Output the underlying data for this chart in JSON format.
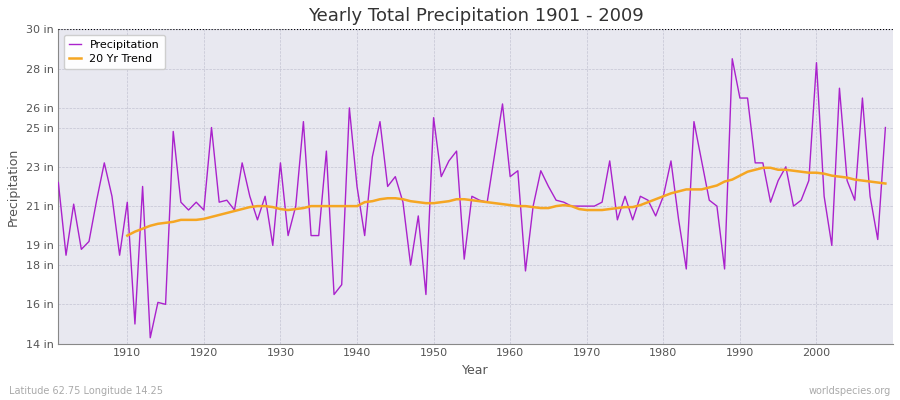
{
  "title": "Yearly Total Precipitation 1901 - 2009",
  "xlabel": "Year",
  "ylabel": "Precipitation",
  "bottom_left_label": "Latitude 62.75 Longitude 14.25",
  "bottom_right_label": "worldspecies.org",
  "ylim": [
    14,
    30
  ],
  "yticks": [
    14,
    16,
    18,
    19,
    21,
    23,
    25,
    26,
    28,
    30
  ],
  "ytick_labels": [
    "14 in",
    "16 in",
    "18 in",
    "19 in",
    "21 in",
    "23 in",
    "25 in",
    "26 in",
    "28 in",
    "30 in"
  ],
  "xlim": [
    1901,
    2010
  ],
  "xticks": [
    1910,
    1920,
    1930,
    1940,
    1950,
    1960,
    1970,
    1980,
    1990,
    2000
  ],
  "fig_bg_color": "#ffffff",
  "plot_bg_color": "#e8e8f0",
  "precip_color": "#aa22cc",
  "trend_color": "#f5a623",
  "precip_linewidth": 1.0,
  "trend_linewidth": 1.8,
  "years": [
    1901,
    1902,
    1903,
    1904,
    1905,
    1906,
    1907,
    1908,
    1909,
    1910,
    1911,
    1912,
    1913,
    1914,
    1915,
    1916,
    1917,
    1918,
    1919,
    1920,
    1921,
    1922,
    1923,
    1924,
    1925,
    1926,
    1927,
    1928,
    1929,
    1930,
    1931,
    1932,
    1933,
    1934,
    1935,
    1936,
    1937,
    1938,
    1939,
    1940,
    1941,
    1942,
    1943,
    1944,
    1945,
    1946,
    1947,
    1948,
    1949,
    1950,
    1951,
    1952,
    1953,
    1954,
    1955,
    1956,
    1957,
    1958,
    1959,
    1960,
    1961,
    1962,
    1963,
    1964,
    1965,
    1966,
    1967,
    1968,
    1969,
    1970,
    1971,
    1972,
    1973,
    1974,
    1975,
    1976,
    1977,
    1978,
    1979,
    1980,
    1981,
    1982,
    1983,
    1984,
    1985,
    1986,
    1987,
    1988,
    1989,
    1990,
    1991,
    1992,
    1993,
    1994,
    1995,
    1996,
    1997,
    1998,
    1999,
    2000,
    2001,
    2002,
    2003,
    2004,
    2005,
    2006,
    2007,
    2008,
    2009
  ],
  "precip": [
    22.2,
    18.5,
    21.1,
    18.8,
    19.2,
    21.3,
    23.2,
    21.5,
    18.5,
    21.2,
    15.0,
    22.0,
    14.3,
    16.1,
    16.0,
    24.8,
    21.2,
    20.8,
    21.2,
    20.8,
    25.0,
    21.2,
    21.3,
    20.8,
    23.2,
    21.5,
    20.3,
    21.5,
    19.0,
    23.2,
    19.5,
    21.0,
    25.3,
    19.5,
    19.5,
    23.8,
    16.5,
    17.0,
    26.0,
    22.0,
    19.5,
    23.5,
    25.3,
    22.0,
    22.5,
    21.2,
    18.0,
    20.5,
    16.5,
    25.5,
    22.5,
    23.3,
    23.8,
    18.3,
    21.5,
    21.3,
    21.2,
    23.7,
    26.2,
    22.5,
    22.8,
    17.7,
    21.0,
    22.8,
    22.0,
    21.3,
    21.2,
    21.0,
    21.0,
    21.0,
    21.0,
    21.2,
    23.3,
    20.3,
    21.5,
    20.3,
    21.5,
    21.3,
    20.5,
    21.5,
    23.3,
    20.3,
    17.8,
    25.3,
    23.3,
    21.3,
    21.0,
    17.8,
    28.5,
    26.5,
    26.5,
    23.2,
    23.2,
    21.2,
    22.3,
    23.0,
    21.0,
    21.3,
    22.3,
    28.3,
    21.5,
    19.0,
    27.0,
    22.3,
    21.3,
    26.5,
    21.5,
    19.3,
    25.0
  ],
  "trend": [
    null,
    null,
    null,
    null,
    null,
    null,
    null,
    null,
    null,
    19.5,
    19.7,
    19.85,
    20.0,
    20.1,
    20.15,
    20.2,
    20.3,
    20.3,
    20.3,
    20.35,
    20.45,
    20.55,
    20.65,
    20.75,
    20.85,
    20.95,
    21.0,
    21.0,
    20.95,
    20.85,
    20.8,
    20.85,
    20.9,
    21.0,
    21.0,
    21.0,
    21.0,
    21.0,
    21.0,
    21.0,
    21.2,
    21.25,
    21.35,
    21.4,
    21.4,
    21.35,
    21.25,
    21.2,
    21.15,
    21.15,
    21.2,
    21.25,
    21.35,
    21.35,
    21.3,
    21.25,
    21.2,
    21.15,
    21.1,
    21.05,
    21.0,
    21.0,
    20.95,
    20.9,
    20.9,
    21.0,
    21.05,
    21.0,
    20.85,
    20.8,
    20.8,
    20.8,
    20.85,
    20.9,
    20.95,
    20.95,
    21.05,
    21.2,
    21.35,
    21.5,
    21.65,
    21.75,
    21.85,
    21.85,
    21.85,
    21.95,
    22.05,
    22.25,
    22.35,
    22.55,
    22.75,
    22.85,
    22.95,
    22.95,
    22.85,
    22.85,
    22.8,
    22.75,
    22.7,
    22.7,
    22.65,
    22.55,
    22.5,
    22.45,
    22.35,
    22.3,
    22.25,
    22.2,
    22.15
  ]
}
